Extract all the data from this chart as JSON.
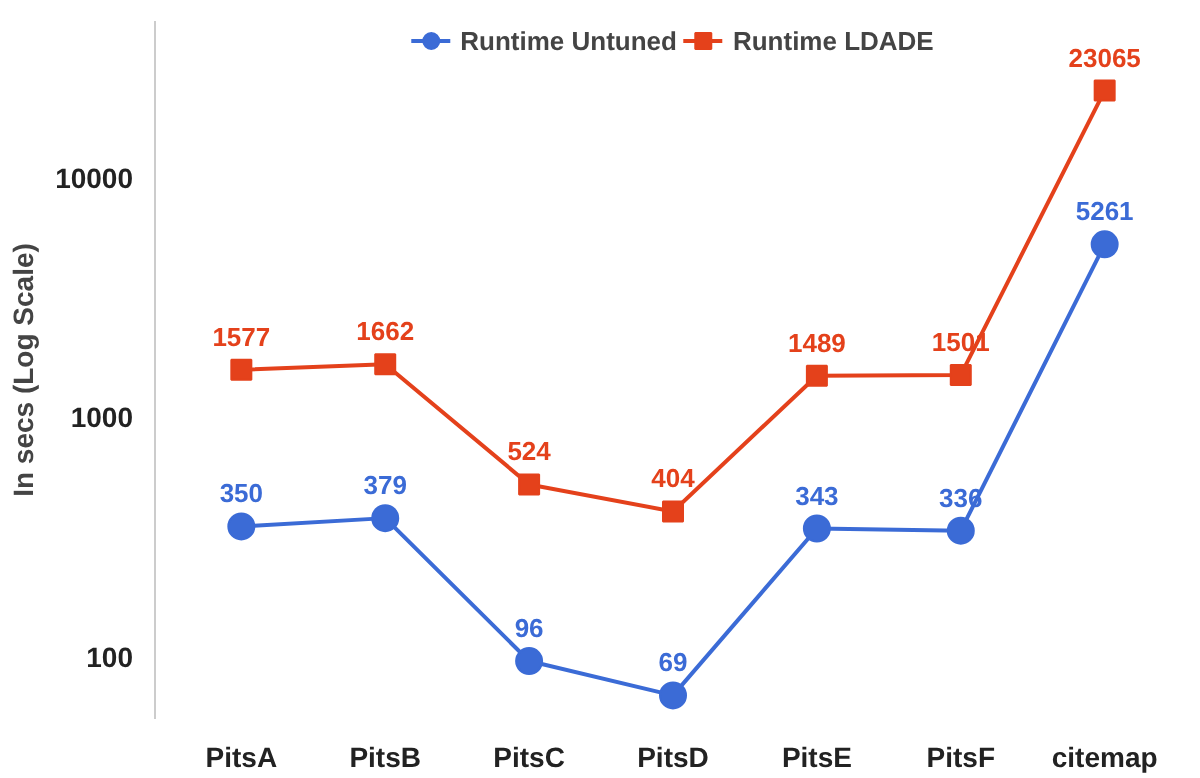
{
  "chart_data": {
    "type": "line",
    "ylabel": "In secs (Log Scale)",
    "categories": [
      "PitsA",
      "PitsB",
      "PitsC",
      "PitsD",
      "PitsE",
      "PitsF",
      "citemap"
    ],
    "series": [
      {
        "name": "Runtime Untuned",
        "color": "#3b6bd6",
        "marker": "circle",
        "values": [
          350,
          379,
          96,
          69,
          343,
          336,
          5261
        ]
      },
      {
        "name": "Runtime LDADE",
        "color": "#e4411b",
        "marker": "square",
        "values": [
          1577,
          1662,
          524,
          404,
          1489,
          1501,
          23065
        ]
      }
    ],
    "log": true,
    "ylim": [
      55,
      45000
    ],
    "yticks": [
      100,
      1000,
      10000
    ],
    "data_labels": true,
    "legend": "top",
    "grid": false
  }
}
